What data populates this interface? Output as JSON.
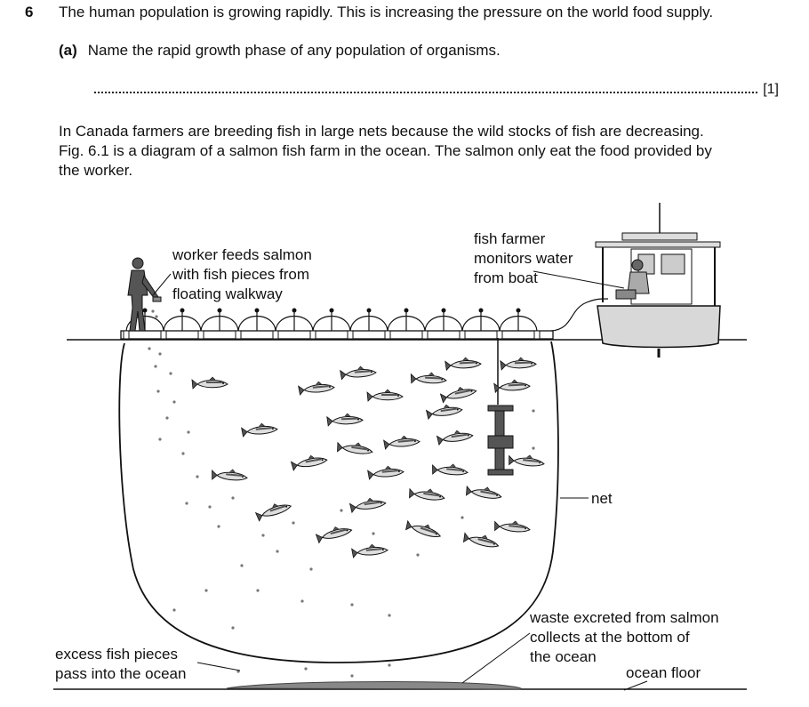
{
  "question": {
    "number": "6",
    "stem": "The human population is growing rapidly. This is increasing the pressure on the world food supply."
  },
  "part_a": {
    "label": "(a)",
    "text": "Name the rapid growth phase of any population of organisms.",
    "marks": "[1]"
  },
  "paragraph": {
    "lines": [
      "In Canada farmers are breeding fish in large nets because the wild stocks of fish are decreasing.",
      "Fig. 6.1 is a diagram of a salmon fish farm in the ocean. The salmon only eat the food provided by",
      "the worker."
    ]
  },
  "figure": {
    "labels": {
      "worker": [
        "worker feeds salmon",
        "with fish pieces from",
        "floating walkway"
      ],
      "farmer": [
        "fish farmer",
        "monitors water",
        "from boat"
      ],
      "net": "net",
      "waste": [
        "waste excreted from salmon",
        "collects at the bottom of",
        "the ocean"
      ],
      "excess": [
        "excess fish pieces",
        "pass into the ocean"
      ],
      "floor": "ocean floor"
    }
  }
}
